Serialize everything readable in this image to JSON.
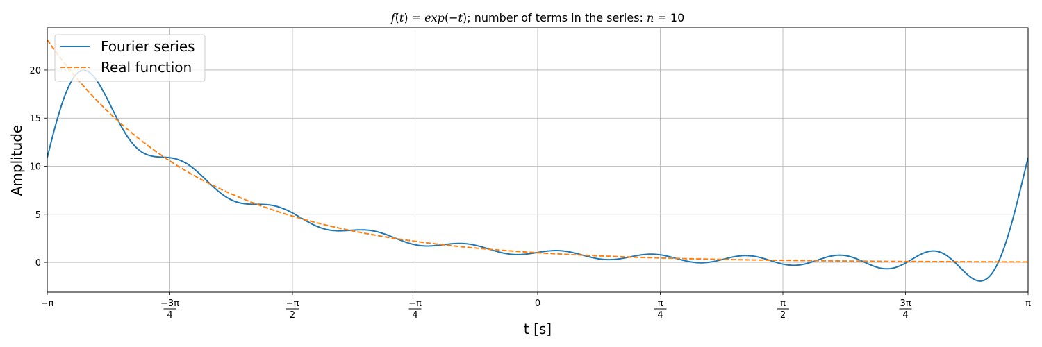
{
  "chart_data": {
    "type": "line",
    "title": {
      "part1": "f",
      "part2": "(",
      "part3": "t",
      "part4": ") = ",
      "part5": "exp",
      "part6": "(−",
      "part7": "t",
      "part8": ")",
      "part9": "; number of terms in the series: ",
      "part10": "n",
      "part11": " = 10"
    },
    "xlabel": "t [s]",
    "ylabel": "Amplitude",
    "xlim": [
      -3.14159,
      3.14159
    ],
    "ylim": [
      -3.1,
      24.4
    ],
    "grid": true,
    "legend_position": "top-left",
    "x_ticks": [
      {
        "value": -3.14159,
        "text": "−π"
      },
      {
        "value": -2.35619,
        "num": "−3π",
        "den": "4"
      },
      {
        "value": -1.5708,
        "num": "−π",
        "den": "2"
      },
      {
        "value": -0.7854,
        "num": "−π",
        "den": "4"
      },
      {
        "value": 0,
        "text": "0"
      },
      {
        "value": 0.7854,
        "num": "π",
        "den": "4"
      },
      {
        "value": 1.5708,
        "num": "π",
        "den": "2"
      },
      {
        "value": 2.35619,
        "num": "3π",
        "den": "4"
      },
      {
        "value": 3.14159,
        "text": "π"
      }
    ],
    "y_ticks": [
      0,
      5,
      10,
      15,
      20
    ],
    "series": [
      {
        "name": "Fourier series",
        "color": "#1f77b4",
        "dash": "solid",
        "formula": "a0/2 + sum_{k=1..10} (a_k cos(kt) + b_k sin(kt)), a_k = (-1)^k*2*sinh(pi)/(pi(1+k^2)), b_k = k*a_k",
        "n_terms": 10
      },
      {
        "name": "Real function",
        "color": "#ff7f0e",
        "dash": "dashed",
        "formula": "exp(-t)"
      }
    ]
  }
}
